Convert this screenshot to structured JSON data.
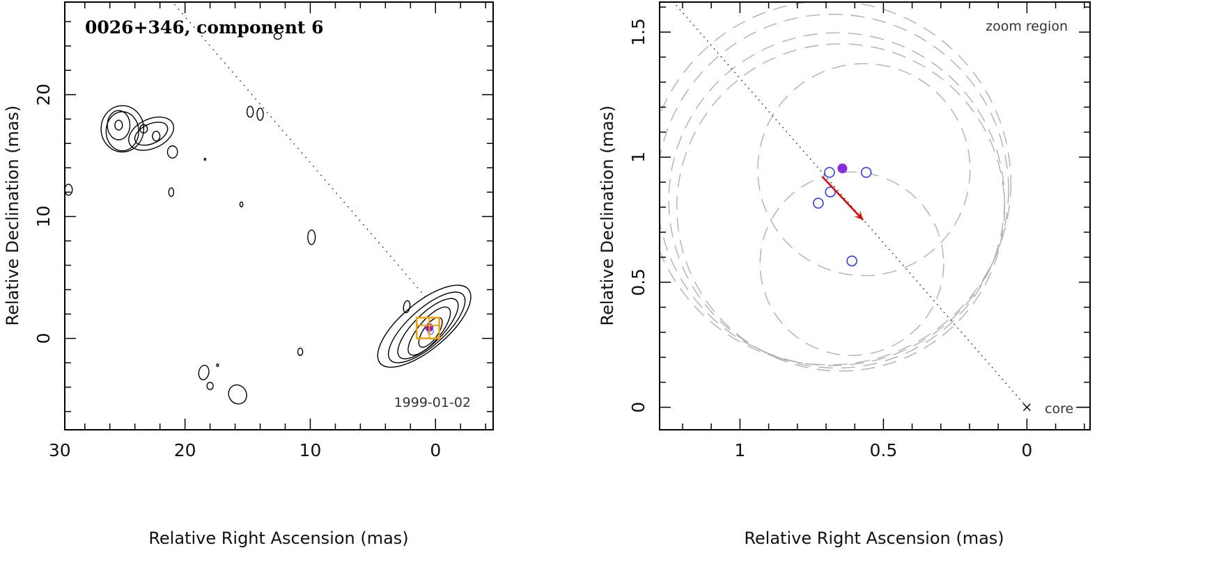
{
  "chart_data": [
    {
      "type": "contour",
      "title": "0026+346, component 6",
      "epoch": "1999-01-02",
      "xlabel": "Relative Right Ascension (mas)",
      "ylabel": "Relative Declination (mas)",
      "xlim": [
        29.6,
        -4.6
      ],
      "ylim": [
        -7.5,
        27.6
      ],
      "xticks": [
        30,
        20,
        10,
        0
      ],
      "yticks": [
        0,
        10,
        20
      ],
      "x_reverse": true,
      "ridge_line": {
        "from": [
          0.8,
          3.4
        ],
        "to": [
          21.0,
          27.6
        ],
        "style": "dotted"
      },
      "component_marker": {
        "x": 0.5,
        "y": 0.9,
        "color": "#8a2be2"
      },
      "zoom_box": {
        "x": [
          -0.3,
          1.5
        ],
        "y": [
          0.0,
          1.7
        ],
        "color": "#f5a000"
      },
      "contours": [
        {
          "cx": 0.9,
          "cy": 1.0,
          "rx": 4.6,
          "ry": 1.9,
          "angle": -40
        },
        {
          "cx": 0.7,
          "cy": 0.9,
          "rx": 3.9,
          "ry": 1.5,
          "angle": -42
        },
        {
          "cx": 0.6,
          "cy": 0.8,
          "rx": 3.2,
          "ry": 1.2,
          "angle": -45
        },
        {
          "cx": 0.5,
          "cy": 0.6,
          "rx": 2.4,
          "ry": 0.9,
          "angle": -50
        },
        {
          "cx": 0.4,
          "cy": 0.5,
          "rx": 1.4,
          "ry": 0.6,
          "angle": -55
        },
        {
          "cx": 2.3,
          "cy": 2.6,
          "rx": 0.25,
          "ry": 0.5,
          "angle": 10
        },
        {
          "cx": 25.0,
          "cy": 17.2,
          "rx": 1.7,
          "ry": 1.9,
          "angle": 0
        },
        {
          "cx": 25.0,
          "cy": 17.0,
          "rx": 1.3,
          "ry": 1.6,
          "angle": 0
        },
        {
          "cx": 25.3,
          "cy": 17.5,
          "rx": 0.9,
          "ry": 1.2,
          "angle": 0
        },
        {
          "cx": 25.3,
          "cy": 17.5,
          "rx": 0.3,
          "ry": 0.4,
          "angle": 0
        },
        {
          "cx": 22.7,
          "cy": 16.8,
          "rx": 1.9,
          "ry": 1.2,
          "angle": -25
        },
        {
          "cx": 22.7,
          "cy": 16.8,
          "rx": 1.4,
          "ry": 0.8,
          "angle": -25
        },
        {
          "cx": 23.3,
          "cy": 17.2,
          "rx": 0.3,
          "ry": 0.35,
          "angle": 0
        },
        {
          "cx": 22.3,
          "cy": 16.6,
          "rx": 0.3,
          "ry": 0.4,
          "angle": 0
        },
        {
          "cx": 21.0,
          "cy": 15.3,
          "rx": 0.4,
          "ry": 0.5,
          "angle": 0
        },
        {
          "cx": 29.3,
          "cy": 12.2,
          "rx": 0.3,
          "ry": 0.45,
          "angle": 0
        },
        {
          "cx": 14.8,
          "cy": 18.6,
          "rx": 0.25,
          "ry": 0.45,
          "angle": 0
        },
        {
          "cx": 14.0,
          "cy": 18.4,
          "rx": 0.25,
          "ry": 0.5,
          "angle": 0
        },
        {
          "cx": 21.1,
          "cy": 12.0,
          "rx": 0.2,
          "ry": 0.35,
          "angle": 0
        },
        {
          "cx": 15.5,
          "cy": 11.0,
          "rx": 0.12,
          "ry": 0.2,
          "angle": 0
        },
        {
          "cx": 18.4,
          "cy": 14.7,
          "rx": 0.06,
          "ry": 0.08,
          "angle": 0
        },
        {
          "cx": 9.9,
          "cy": 8.3,
          "rx": 0.3,
          "ry": 0.6,
          "angle": 0
        },
        {
          "cx": 10.8,
          "cy": -1.1,
          "rx": 0.2,
          "ry": 0.3,
          "angle": 0
        },
        {
          "cx": 18.5,
          "cy": -2.8,
          "rx": 0.4,
          "ry": 0.6,
          "angle": 10
        },
        {
          "cx": 18.0,
          "cy": -3.9,
          "rx": 0.25,
          "ry": 0.3,
          "angle": 0
        },
        {
          "cx": 17.4,
          "cy": -2.2,
          "rx": 0.08,
          "ry": 0.1,
          "angle": 0
        },
        {
          "cx": 15.8,
          "cy": -4.6,
          "rx": 0.7,
          "ry": 0.8,
          "angle": -30
        },
        {
          "cx": 12.6,
          "cy": 24.8,
          "rx": 0.3,
          "ry": 0.25,
          "angle": 0
        }
      ]
    },
    {
      "type": "scatter",
      "annotation": "zoom region",
      "core_label": "core",
      "xlabel": "Relative Right Ascension (mas)",
      "ylabel": "Relative Declination (mas)",
      "xlim": [
        1.28,
        -0.22
      ],
      "ylim": [
        -0.09,
        1.62
      ],
      "xticks": [
        1,
        0.5,
        0
      ],
      "yticks": [
        0,
        0.5,
        1,
        1.5
      ],
      "x_reverse": true,
      "ridge_line": {
        "from": [
          0,
          0
        ],
        "to": [
          1.237,
          1.627
        ],
        "style": "dotted"
      },
      "open_points": [
        {
          "x": 0.688,
          "y": 0.939
        },
        {
          "x": 0.56,
          "y": 0.939
        },
        {
          "x": 0.685,
          "y": 0.861
        },
        {
          "x": 0.727,
          "y": 0.816
        },
        {
          "x": 0.61,
          "y": 0.585
        }
      ],
      "filled_point": {
        "x": 0.643,
        "y": 0.955,
        "color": "#8a2be2"
      },
      "velocity_arrow": {
        "from": [
          0.713,
          0.922
        ],
        "to": [
          0.571,
          0.749
        ],
        "color": "#e00000"
      },
      "error_circles": [
        {
          "cx": 0.691,
          "cy": 0.897,
          "r": 0.635
        },
        {
          "cx": 0.677,
          "cy": 0.869,
          "r": 0.613
        },
        {
          "cx": 0.663,
          "cy": 0.827,
          "r": 0.585
        },
        {
          "cx": 0.649,
          "cy": 0.799,
          "r": 0.571
        },
        {
          "cx": 0.568,
          "cy": 0.95,
          "r": 0.37
        },
        {
          "cx": 0.61,
          "cy": 0.574,
          "r": 0.32
        }
      ]
    }
  ]
}
